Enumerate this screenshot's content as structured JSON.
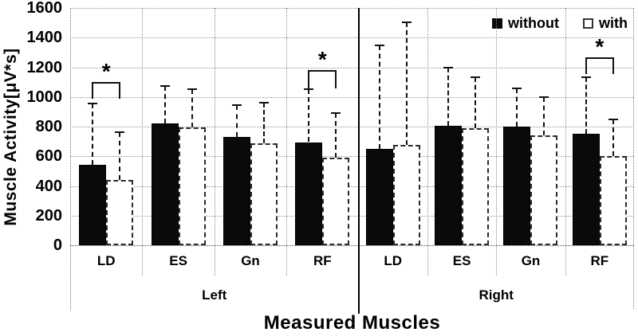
{
  "chart_data": {
    "type": "bar",
    "xlabel": "Measured Muscles",
    "ylabel": "Muscle Activity[μV*s]",
    "ylim": [
      0,
      1600
    ],
    "yticks": [
      0,
      200,
      400,
      600,
      800,
      1000,
      1200,
      1400,
      1600
    ],
    "grid": "horizontal-dotted",
    "legend_position": "top-right-inside",
    "legend": [
      {
        "label": "without",
        "swatch": "filled",
        "color": "#0a0a0a"
      },
      {
        "label": "with",
        "swatch": "open",
        "color": "#ffffff"
      }
    ],
    "groups": [
      {
        "label": "Left",
        "categories": [
          {
            "label": "LD",
            "without": {
              "value": 540,
              "err_top": 955
            },
            "with": {
              "value": 440,
              "err_top": 760
            }
          },
          {
            "label": "ES",
            "without": {
              "value": 820,
              "err_top": 1075
            },
            "with": {
              "value": 795,
              "err_top": 1055
            }
          },
          {
            "label": "Gn",
            "without": {
              "value": 730,
              "err_top": 945
            },
            "with": {
              "value": 685,
              "err_top": 960
            }
          },
          {
            "label": "RF",
            "without": {
              "value": 695,
              "err_top": 1050
            },
            "with": {
              "value": 590,
              "err_top": 890
            }
          }
        ]
      },
      {
        "label": "Right",
        "categories": [
          {
            "label": "LD",
            "without": {
              "value": 650,
              "err_top": 1350
            },
            "with": {
              "value": 675,
              "err_top": 1505
            }
          },
          {
            "label": "ES",
            "without": {
              "value": 805,
              "err_top": 1195
            },
            "with": {
              "value": 790,
              "err_top": 1135
            }
          },
          {
            "label": "Gn",
            "without": {
              "value": 800,
              "err_top": 1060
            },
            "with": {
              "value": 740,
              "err_top": 1000
            }
          },
          {
            "label": "RF",
            "without": {
              "value": 750,
              "err_top": 1135
            },
            "with": {
              "value": 600,
              "err_top": 850
            }
          }
        ]
      }
    ],
    "significance": [
      {
        "group": "Left",
        "category": "LD",
        "label": "*",
        "bracket_y": 1100,
        "legs_to": 990
      },
      {
        "group": "Left",
        "category": "RF",
        "label": "*",
        "bracket_y": 1180,
        "legs_to": 1055
      },
      {
        "group": "Right",
        "category": "RF",
        "label": "*",
        "bracket_y": 1270,
        "legs_to": 1155
      }
    ],
    "colors": {
      "bar_filled": "#0a0a0a",
      "bar_open": "#ffffff",
      "gridline": "#8f8f8f",
      "axis": "#000000"
    }
  }
}
